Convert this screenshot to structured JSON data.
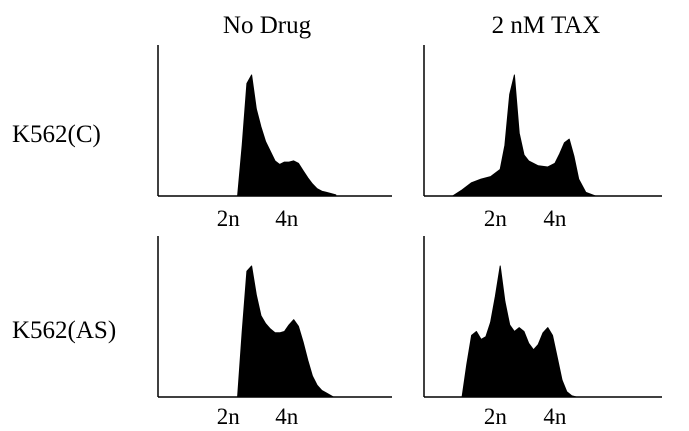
{
  "column_titles": [
    "No Drug",
    "2 nM TAX"
  ],
  "row_labels": [
    "K562(C)",
    "K562(AS)"
  ],
  "chart_data": [
    {
      "type": "area",
      "column": "No Drug",
      "row": "K562(C)",
      "ticks": [
        {
          "label": "2n",
          "x": 0.3
        },
        {
          "label": "4n",
          "x": 0.55
        }
      ],
      "xlim": [
        0,
        1
      ],
      "ylim": [
        0,
        1
      ],
      "x": [
        0.34,
        0.36,
        0.38,
        0.4,
        0.42,
        0.44,
        0.46,
        0.48,
        0.5,
        0.52,
        0.54,
        0.56,
        0.58,
        0.6,
        0.62,
        0.64,
        0.66,
        0.68,
        0.7,
        0.72,
        0.74,
        0.76
      ],
      "values": [
        0,
        0.42,
        0.93,
        1.0,
        0.72,
        0.57,
        0.45,
        0.37,
        0.29,
        0.26,
        0.28,
        0.28,
        0.29,
        0.27,
        0.21,
        0.15,
        0.1,
        0.06,
        0.04,
        0.03,
        0.02,
        0.01
      ]
    },
    {
      "type": "area",
      "column": "2 nM TAX",
      "row": "K562(C)",
      "ticks": [
        {
          "label": "2n",
          "x": 0.3
        },
        {
          "label": "4n",
          "x": 0.55
        }
      ],
      "xlim": [
        0,
        1
      ],
      "ylim": [
        0,
        1
      ],
      "x": [
        0.12,
        0.16,
        0.2,
        0.24,
        0.28,
        0.32,
        0.34,
        0.36,
        0.38,
        0.4,
        0.42,
        0.44,
        0.48,
        0.52,
        0.55,
        0.57,
        0.59,
        0.61,
        0.63,
        0.65,
        0.68,
        0.72
      ],
      "values": [
        0,
        0.05,
        0.11,
        0.14,
        0.16,
        0.22,
        0.42,
        0.84,
        1.0,
        0.52,
        0.34,
        0.29,
        0.25,
        0.24,
        0.27,
        0.35,
        0.44,
        0.47,
        0.33,
        0.14,
        0.03,
        0.0
      ]
    },
    {
      "type": "area",
      "column": "No Drug",
      "row": "K562(AS)",
      "ticks": [
        {
          "label": "2n",
          "x": 0.3
        },
        {
          "label": "4n",
          "x": 0.55
        }
      ],
      "xlim": [
        0,
        1
      ],
      "ylim": [
        0,
        1
      ],
      "x": [
        0.34,
        0.36,
        0.38,
        0.4,
        0.42,
        0.44,
        0.46,
        0.48,
        0.5,
        0.52,
        0.54,
        0.56,
        0.58,
        0.6,
        0.62,
        0.64,
        0.66,
        0.68,
        0.7,
        0.72,
        0.75
      ],
      "values": [
        0,
        0.5,
        0.96,
        1.0,
        0.78,
        0.62,
        0.56,
        0.52,
        0.49,
        0.49,
        0.5,
        0.55,
        0.59,
        0.54,
        0.42,
        0.28,
        0.16,
        0.09,
        0.05,
        0.03,
        0.0
      ]
    },
    {
      "type": "area",
      "column": "2 nM TAX",
      "row": "K562(AS)",
      "ticks": [
        {
          "label": "2n",
          "x": 0.3
        },
        {
          "label": "4n",
          "x": 0.55
        }
      ],
      "xlim": [
        0,
        1
      ],
      "ylim": [
        0,
        1
      ],
      "x": [
        0.16,
        0.18,
        0.2,
        0.22,
        0.24,
        0.26,
        0.28,
        0.3,
        0.32,
        0.34,
        0.36,
        0.38,
        0.4,
        0.42,
        0.44,
        0.46,
        0.48,
        0.5,
        0.52,
        0.54,
        0.56,
        0.58,
        0.6,
        0.62,
        0.64,
        0.66
      ],
      "values": [
        0,
        0.25,
        0.47,
        0.5,
        0.44,
        0.46,
        0.57,
        0.77,
        1.0,
        0.73,
        0.55,
        0.5,
        0.53,
        0.5,
        0.41,
        0.36,
        0.4,
        0.49,
        0.53,
        0.47,
        0.3,
        0.13,
        0.04,
        0.01,
        0.0,
        0.0
      ]
    }
  ]
}
